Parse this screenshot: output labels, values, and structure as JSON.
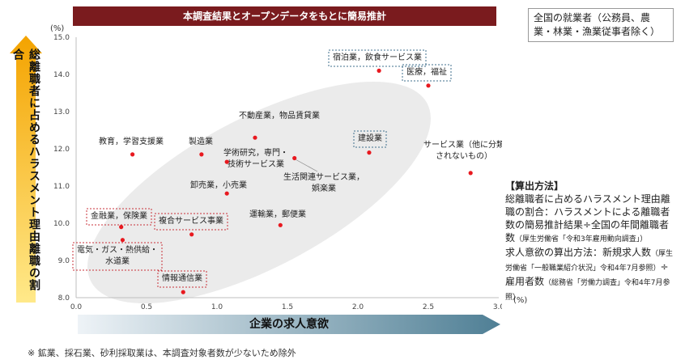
{
  "banner": {
    "text": "本調査結果とオープンデータをもとに簡易推計"
  },
  "scope_note": {
    "text": "全国の就業者（公務員、農業・林業・漁業従事者除く）"
  },
  "y_unit": "(%)",
  "x_unit": "(%)",
  "method": {
    "heading": "【算出方法】",
    "line1": "総離職者に占めるハラスメント理由離職の割合：ハラスメントによる離職者数の簡易推計結果÷全国の年間離職者数",
    "line1_src": "（厚生労働省「令和3年雇用動向調査」）",
    "line2": "求人意欲の算出方法：新規求人数",
    "line2_src1": "（厚生労働省「一般職業紹介状況」令和4年7月参照）",
    "line2_mid": "÷雇用者数",
    "line2_src2": "（総務省「労働力調査」令和4年7月参照）"
  },
  "footnote": "※ 鉱業、採石業、砂利採取業は、本調査対象者数が少ないため除外",
  "colors": {
    "banner": "#7a1b1e",
    "point": "#e8191f",
    "y_arrow_top": "#f4a300",
    "y_arrow_bottom": "#ffe98a",
    "x_arrow_left": "#eef3f7",
    "x_arrow_right": "#4f7f95",
    "ellipse": "#ebebeb",
    "box_red": "#c8303a",
    "box_blue": "#3f6f8c"
  },
  "chart_data": {
    "type": "scatter",
    "title": "",
    "xlabel": "企業の求人意欲",
    "ylabel": "総離職者に占めるハラスメント理由離職の割合",
    "xlim": [
      0.0,
      3.0
    ],
    "ylim": [
      8.0,
      15.0
    ],
    "x_ticks": [
      "0.0",
      "0.5",
      "1.0",
      "1.5",
      "2.0",
      "2.5",
      "3.0"
    ],
    "y_ticks": [
      "8.0",
      "9.0",
      "10.0",
      "11.0",
      "12.0",
      "13.0",
      "14.0",
      "15.0"
    ],
    "grid": false,
    "points": [
      {
        "label": "宿泊業，飲食サービス業",
        "x": 2.15,
        "y": 14.1,
        "box": "blue"
      },
      {
        "label": "医療，福祉",
        "x": 2.5,
        "y": 13.7,
        "box": "blue"
      },
      {
        "label": "不動産業，物品賃貸業",
        "x": 1.27,
        "y": 12.3,
        "box": "none"
      },
      {
        "label": "建設業",
        "x": 2.08,
        "y": 11.9,
        "box": "blue"
      },
      {
        "label": "サービス業（他に分類されないもの）",
        "x": 2.8,
        "y": 11.35,
        "box": "none"
      },
      {
        "label": "教育，学習支援業",
        "x": 0.4,
        "y": 11.85,
        "box": "none"
      },
      {
        "label": "製造業",
        "x": 0.89,
        "y": 11.85,
        "box": "none"
      },
      {
        "label": "学術研究，専門・技術サービス業",
        "x": 1.07,
        "y": 11.65,
        "box": "none"
      },
      {
        "label": "生活関連サービス業，娯楽業",
        "x": 1.55,
        "y": 11.75,
        "box": "none"
      },
      {
        "label": "卸売業，小売業",
        "x": 1.07,
        "y": 10.8,
        "box": "none"
      },
      {
        "label": "金融業，保険業",
        "x": 0.32,
        "y": 9.9,
        "box": "red"
      },
      {
        "label": "運輸業，郵便業",
        "x": 1.45,
        "y": 9.95,
        "box": "none"
      },
      {
        "label": "複合サービス事業",
        "x": 0.82,
        "y": 9.7,
        "box": "red"
      },
      {
        "label": "電気・ガス・熱供給・水道業",
        "x": 0.33,
        "y": 9.55,
        "box": "red"
      },
      {
        "label": "情報通信業",
        "x": 0.76,
        "y": 8.15,
        "box": "red"
      }
    ]
  }
}
